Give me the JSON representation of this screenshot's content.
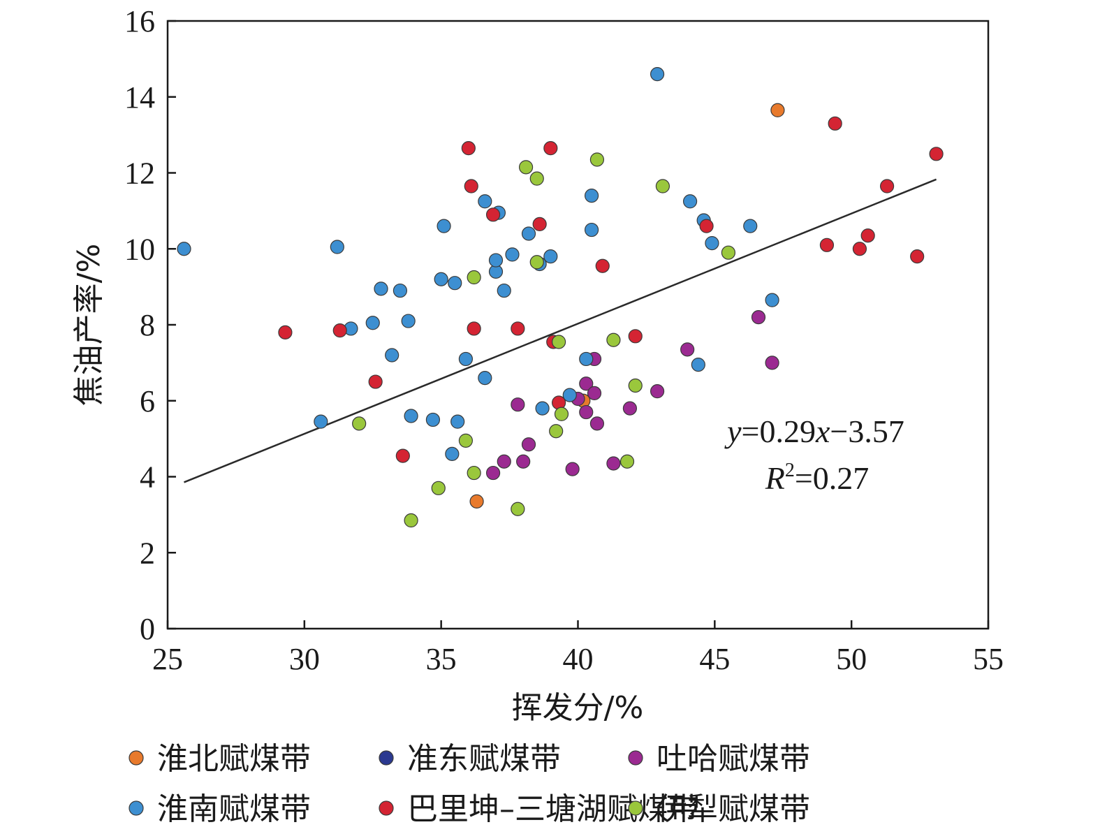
{
  "chart_data": {
    "type": "scatter",
    "xlabel": "挥发分/%",
    "ylabel": "焦油产率/%",
    "xlim": [
      25,
      55
    ],
    "ylim": [
      0,
      16
    ],
    "xticks": [
      "25",
      "30",
      "35",
      "40",
      "45",
      "50",
      "55"
    ],
    "yticks": [
      "0",
      "2",
      "4",
      "6",
      "8",
      "10",
      "12",
      "14",
      "16"
    ],
    "grid": false,
    "legend_position": "bottom",
    "fit": {
      "slope": 0.29,
      "intercept": -3.57,
      "x_range": [
        25.6,
        53.1
      ],
      "equation_parts": {
        "y": "y",
        "mid": "=0.29",
        "x": "x",
        "tail": "−3.57"
      },
      "r2_parts": {
        "r": "R",
        "sup": "2",
        "tail": "=0.27"
      }
    },
    "series": [
      {
        "name": "淮北赋煤带",
        "color": "#e87a2c",
        "points": [
          [
            47.3,
            13.65
          ],
          [
            36.3,
            3.35
          ],
          [
            40.2,
            6.0
          ]
        ]
      },
      {
        "name": "准东赋煤带",
        "color": "#2b3990",
        "points": []
      },
      {
        "name": "吐哈赋煤带",
        "color": "#9b2a91",
        "points": [
          [
            37.8,
            5.9
          ],
          [
            38.2,
            4.85
          ],
          [
            38.0,
            4.4
          ],
          [
            37.3,
            4.4
          ],
          [
            36.9,
            4.1
          ],
          [
            39.8,
            4.2
          ],
          [
            40.3,
            6.45
          ],
          [
            40.6,
            6.2
          ],
          [
            40.3,
            5.7
          ],
          [
            40.7,
            5.4
          ],
          [
            40.6,
            7.1
          ],
          [
            41.3,
            4.35
          ],
          [
            41.9,
            5.8
          ],
          [
            42.9,
            6.25
          ],
          [
            44.0,
            7.35
          ],
          [
            46.6,
            8.2
          ],
          [
            47.1,
            7.0
          ],
          [
            40.0,
            6.05
          ]
        ]
      },
      {
        "name": "淮南赋煤带",
        "color": "#3d8fd1",
        "points": [
          [
            25.6,
            10.0
          ],
          [
            31.2,
            10.05
          ],
          [
            31.7,
            7.9
          ],
          [
            32.5,
            8.05
          ],
          [
            32.8,
            8.95
          ],
          [
            33.2,
            7.2
          ],
          [
            33.5,
            8.9
          ],
          [
            33.8,
            8.1
          ],
          [
            33.9,
            5.6
          ],
          [
            30.6,
            5.45
          ],
          [
            34.7,
            5.5
          ],
          [
            35.0,
            9.2
          ],
          [
            35.1,
            10.6
          ],
          [
            35.4,
            4.6
          ],
          [
            35.5,
            9.1
          ],
          [
            35.6,
            5.45
          ],
          [
            35.9,
            7.1
          ],
          [
            36.6,
            6.6
          ],
          [
            36.6,
            11.25
          ],
          [
            37.0,
            9.4
          ],
          [
            37.0,
            9.7
          ],
          [
            37.1,
            10.95
          ],
          [
            37.3,
            8.9
          ],
          [
            37.6,
            9.85
          ],
          [
            38.2,
            10.4
          ],
          [
            38.6,
            9.6
          ],
          [
            38.7,
            5.8
          ],
          [
            39.0,
            9.8
          ],
          [
            39.7,
            6.15
          ],
          [
            40.3,
            7.1
          ],
          [
            40.5,
            10.5
          ],
          [
            40.5,
            11.4
          ],
          [
            42.9,
            14.6
          ],
          [
            44.1,
            11.25
          ],
          [
            44.6,
            10.75
          ],
          [
            44.9,
            10.15
          ],
          [
            44.4,
            6.95
          ],
          [
            46.3,
            10.6
          ],
          [
            47.1,
            8.65
          ]
        ]
      },
      {
        "name": "巴里坤–三塘湖赋煤带",
        "color": "#d42433",
        "points": [
          [
            29.3,
            7.8
          ],
          [
            31.3,
            7.85
          ],
          [
            32.6,
            6.5
          ],
          [
            33.6,
            4.55
          ],
          [
            36.0,
            12.65
          ],
          [
            36.1,
            11.65
          ],
          [
            36.2,
            7.9
          ],
          [
            36.9,
            10.9
          ],
          [
            37.8,
            7.9
          ],
          [
            38.6,
            10.65
          ],
          [
            39.0,
            12.65
          ],
          [
            39.1,
            7.55
          ],
          [
            39.3,
            5.95
          ],
          [
            40.9,
            9.55
          ],
          [
            42.1,
            7.7
          ],
          [
            44.7,
            10.6
          ],
          [
            49.1,
            10.1
          ],
          [
            49.4,
            13.3
          ],
          [
            50.3,
            10.0
          ],
          [
            50.6,
            10.35
          ],
          [
            51.3,
            11.65
          ],
          [
            52.4,
            9.8
          ],
          [
            53.1,
            12.5
          ]
        ]
      },
      {
        "name": "伊犁赋煤带",
        "color": "#9ac73c",
        "points": [
          [
            32.0,
            5.4
          ],
          [
            33.9,
            2.85
          ],
          [
            34.9,
            3.7
          ],
          [
            35.9,
            4.95
          ],
          [
            36.2,
            4.1
          ],
          [
            36.2,
            9.25
          ],
          [
            37.8,
            3.15
          ],
          [
            38.1,
            12.15
          ],
          [
            38.5,
            11.85
          ],
          [
            38.5,
            9.65
          ],
          [
            39.2,
            5.2
          ],
          [
            39.3,
            7.55
          ],
          [
            39.4,
            5.65
          ],
          [
            40.7,
            12.35
          ],
          [
            41.3,
            7.6
          ],
          [
            41.8,
            4.4
          ],
          [
            42.1,
            6.4
          ],
          [
            43.1,
            11.65
          ],
          [
            45.5,
            9.9
          ]
        ]
      }
    ]
  }
}
